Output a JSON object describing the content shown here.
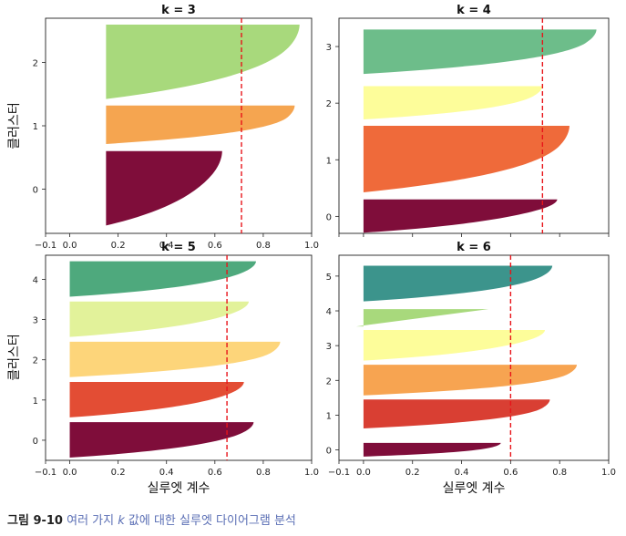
{
  "figure": {
    "ylabel": "클러스터",
    "xlabel": "실루엣 계수",
    "caption_number": "그림 9-10",
    "caption_text_1": "여러 가지",
    "caption_k": "k",
    "caption_text_2": "값에 대한 실루엣 다이어그램 분석"
  },
  "chart_data": [
    {
      "type": "area",
      "title": "k = 3",
      "xlim": [
        -0.1,
        1.0
      ],
      "ylim": [
        -0.7,
        2.7
      ],
      "xticks": [
        "−0.1",
        "0.0",
        "0.2",
        "0.4",
        "0.6",
        "0.8",
        "1.0"
      ],
      "yticks": [
        "0",
        "1",
        "2"
      ],
      "mean_silhouette": 0.71,
      "clusters": [
        {
          "label": "0",
          "color": "#7f0d3a",
          "band": [
            -0.6,
            0.6
          ],
          "min": -0.05,
          "max": 0.63,
          "start": 0.15,
          "body_end": 0.5,
          "shape": "curve"
        },
        {
          "label": "1",
          "color": "#f5a550",
          "band": [
            0.7,
            1.32
          ],
          "min": 0.15,
          "max": 0.93,
          "start": 0.15,
          "body_end": 0.83,
          "shape": "curve"
        },
        {
          "label": "2",
          "color": "#a8d97c",
          "band": [
            1.4,
            2.6
          ],
          "min": 0.15,
          "max": 0.95,
          "start": 0.15,
          "body_end": 0.8,
          "shape": "curve"
        }
      ]
    },
    {
      "type": "area",
      "title": "k = 4",
      "xlim": [
        -0.1,
        1.0
      ],
      "ylim": [
        -0.3,
        3.5
      ],
      "xticks": [],
      "yticks": [
        "0",
        "1",
        "2",
        "3"
      ],
      "mean_silhouette": 0.73,
      "clusters": [
        {
          "label": "0",
          "color": "#7f0d3a",
          "band": [
            -0.3,
            0.3
          ],
          "min": -0.05,
          "max": 0.79,
          "start": 0.0,
          "body_end": 0.55,
          "shape": "curve"
        },
        {
          "label": "1",
          "color": "#ef6a3a",
          "band": [
            0.4,
            1.6
          ],
          "min": 0.0,
          "max": 0.84,
          "start": 0.0,
          "body_end": 0.7,
          "shape": "curve"
        },
        {
          "label": "2",
          "color": "#fdfd9a",
          "band": [
            1.7,
            2.3
          ],
          "min": 0.0,
          "max": 0.73,
          "start": 0.0,
          "body_end": 0.6,
          "shape": "curve"
        },
        {
          "label": "3",
          "color": "#6dbd8a",
          "band": [
            2.5,
            3.3
          ],
          "min": 0.0,
          "max": 0.95,
          "start": 0.0,
          "body_end": 0.8,
          "shape": "curve"
        }
      ]
    },
    {
      "type": "area",
      "title": "k = 5",
      "xlim": [
        -0.1,
        1.0
      ],
      "ylim": [
        -0.5,
        4.6
      ],
      "xticks": [
        "−0.1",
        "0.0",
        "0.2",
        "0.4",
        "0.6",
        "0.8",
        "1.0"
      ],
      "yticks": [
        "0",
        "1",
        "2",
        "3",
        "4"
      ],
      "mean_silhouette": 0.65,
      "clusters": [
        {
          "label": "0",
          "color": "#7f0d3a",
          "band": [
            -0.45,
            0.45
          ],
          "min": 0.0,
          "max": 0.76,
          "start": 0.0,
          "body_end": 0.6,
          "shape": "curve"
        },
        {
          "label": "1",
          "color": "#e34d34",
          "band": [
            0.55,
            1.45
          ],
          "min": -0.02,
          "max": 0.72,
          "start": 0.0,
          "body_end": 0.55,
          "shape": "curve"
        },
        {
          "label": "2",
          "color": "#fdd57a",
          "band": [
            1.55,
            2.45
          ],
          "min": 0.0,
          "max": 0.87,
          "start": 0.0,
          "body_end": 0.75,
          "shape": "curve"
        },
        {
          "label": "3",
          "color": "#e2f29a",
          "band": [
            2.55,
            3.45
          ],
          "min": -0.03,
          "max": 0.74,
          "start": 0.0,
          "body_end": 0.55,
          "shape": "curve"
        },
        {
          "label": "4",
          "color": "#4ea97d",
          "band": [
            3.55,
            4.45
          ],
          "min": 0.0,
          "max": 0.77,
          "start": 0.0,
          "body_end": 0.6,
          "shape": "curve"
        }
      ]
    },
    {
      "type": "area",
      "title": "k = 6",
      "xlim": [
        -0.1,
        1.0
      ],
      "ylim": [
        -0.3,
        5.6
      ],
      "xticks": [
        "−0.1",
        "0.0",
        "0.2",
        "0.4",
        "0.6",
        "0.8",
        "1.0"
      ],
      "yticks": [
        "0",
        "1",
        "2",
        "3",
        "4",
        "5"
      ],
      "mean_silhouette": 0.6,
      "clusters": [
        {
          "label": "0",
          "color": "#7f0d3a",
          "band": [
            -0.2,
            0.2
          ],
          "min": 0.0,
          "max": 0.56,
          "start": 0.0,
          "body_end": 0.45,
          "shape": "curve"
        },
        {
          "label": "1",
          "color": "#d93f33",
          "band": [
            0.6,
            1.45
          ],
          "min": 0.0,
          "max": 0.76,
          "start": 0.0,
          "body_end": 0.65,
          "shape": "curve"
        },
        {
          "label": "2",
          "color": "#f7a451",
          "band": [
            1.55,
            2.45
          ],
          "min": 0.0,
          "max": 0.87,
          "start": 0.0,
          "body_end": 0.75,
          "shape": "curve"
        },
        {
          "label": "3",
          "color": "#fdfd9a",
          "band": [
            2.55,
            3.45
          ],
          "min": 0.0,
          "max": 0.74,
          "start": 0.0,
          "body_end": 0.55,
          "shape": "curve"
        },
        {
          "label": "4",
          "color": "#a8d97c",
          "band": [
            3.55,
            4.05
          ],
          "min": -0.03,
          "max": 0.51,
          "start": -0.03,
          "body_end": 0.0,
          "shape": "wedge"
        },
        {
          "label": "5",
          "color": "#3c948c",
          "band": [
            4.25,
            5.3
          ],
          "min": 0.0,
          "max": 0.77,
          "start": 0.0,
          "body_end": 0.62,
          "shape": "curve"
        }
      ]
    }
  ]
}
